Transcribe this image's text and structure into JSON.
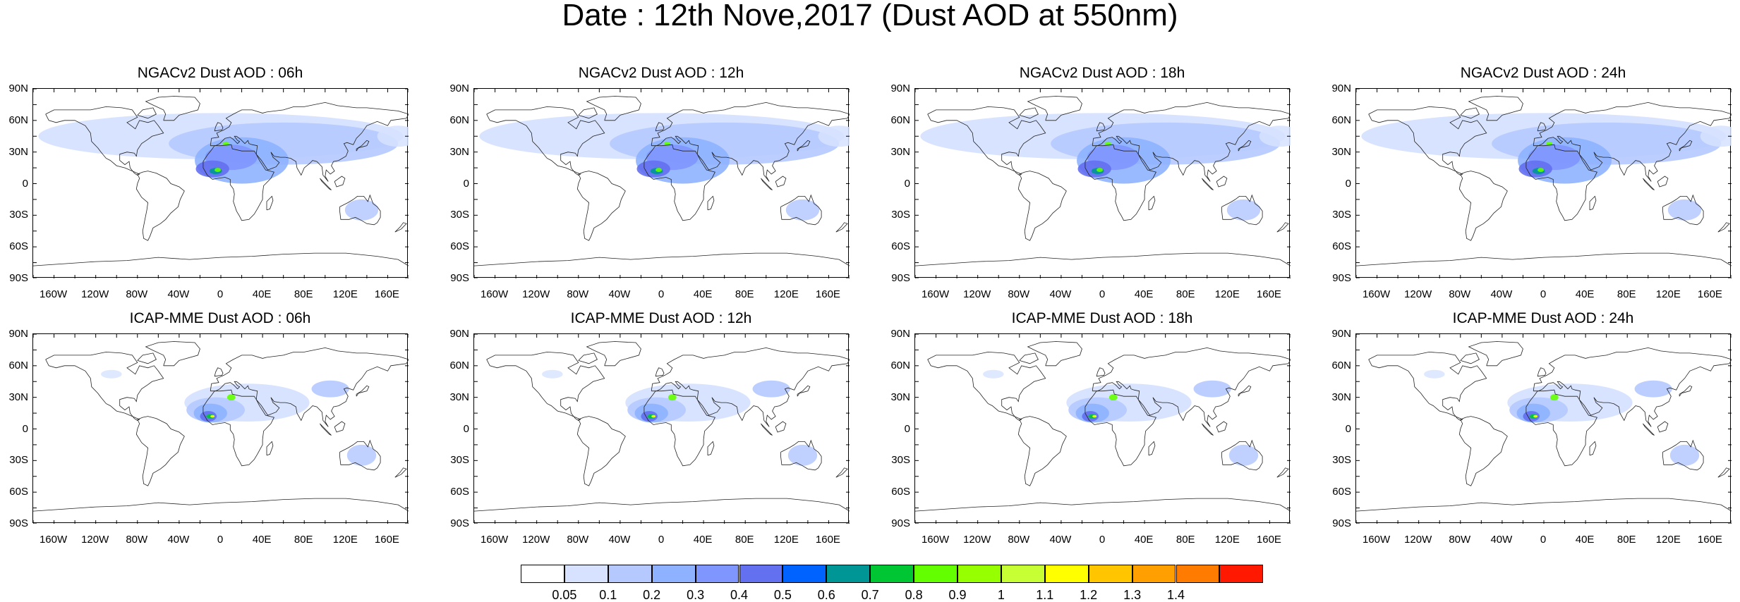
{
  "title": "Date : 12th Nove,2017 (Dust AOD at 550nm)",
  "panels": [
    {
      "title": "NGACv2 Dust AOD : 06h",
      "model": "ngac"
    },
    {
      "title": "NGACv2 Dust AOD : 12h",
      "model": "ngac"
    },
    {
      "title": "NGACv2 Dust AOD : 18h",
      "model": "ngac"
    },
    {
      "title": "NGACv2 Dust AOD : 24h",
      "model": "ngac"
    },
    {
      "title": "ICAP-MME Dust AOD : 06h",
      "model": "icap"
    },
    {
      "title": "ICAP-MME Dust AOD : 12h",
      "model": "icap"
    },
    {
      "title": "ICAP-MME Dust AOD : 18h",
      "model": "icap"
    },
    {
      "title": "ICAP-MME Dust AOD : 24h",
      "model": "icap"
    }
  ],
  "lat_labels": [
    "90N",
    "60N",
    "30N",
    "0",
    "30S",
    "60S",
    "90S"
  ],
  "lon_labels": [
    "160W",
    "120W",
    "80W",
    "40W",
    "0",
    "40E",
    "80E",
    "120E",
    "160E"
  ],
  "colorbar": {
    "levels": [
      "0.05",
      "0.1",
      "0.2",
      "0.3",
      "0.4",
      "0.5",
      "0.6",
      "0.7",
      "0.8",
      "0.9",
      "1",
      "1.1",
      "1.2",
      "1.3",
      "1.4"
    ],
    "colors": [
      "#ffffff",
      "#d6e2ff",
      "#b5c9ff",
      "#8eb2ff",
      "#7f96ff",
      "#6370f0",
      "#0063ff",
      "#009696",
      "#00c633",
      "#63ff00",
      "#96ff00",
      "#c6ff33",
      "#ffff00",
      "#ffc600",
      "#ffa000",
      "#ff7c00",
      "#ff1900"
    ]
  }
}
